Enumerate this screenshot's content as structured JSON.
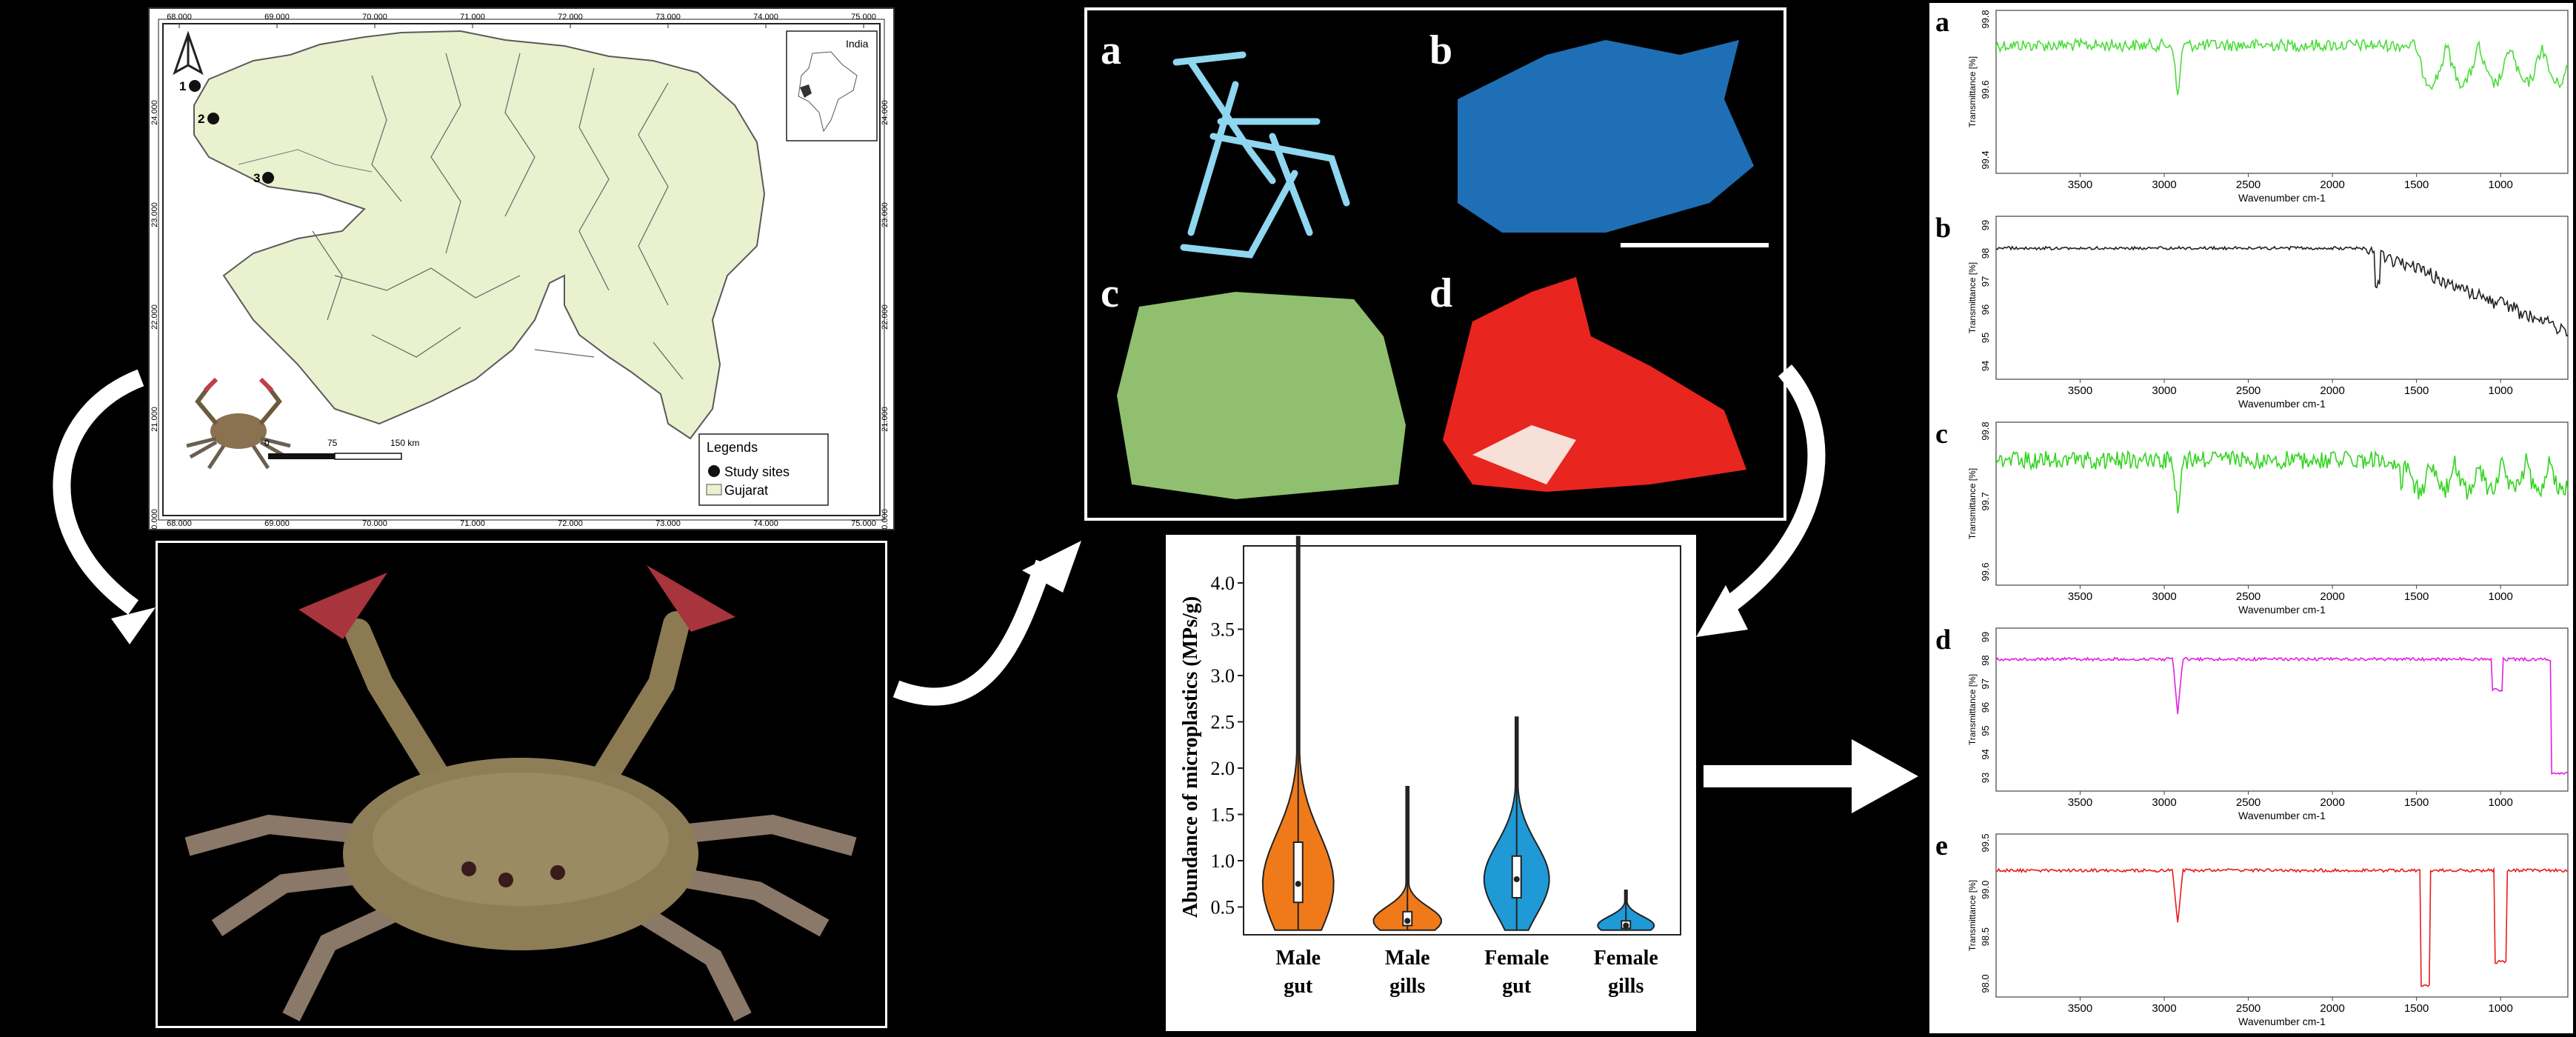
{
  "map": {
    "top_ticks": [
      "68.000",
      "69.000",
      "70.000",
      "71.000",
      "72.000",
      "73.000",
      "74.000",
      "75.000"
    ],
    "bottom_ticks": [
      "68.000",
      "69.000",
      "70.000",
      "71.000",
      "72.000",
      "73.000",
      "74.000",
      "75.000"
    ],
    "left_ticks": [
      "24.000",
      "23.000",
      "22.000",
      "21.000",
      "20.000"
    ],
    "right_ticks": [
      "24.000",
      "23.000",
      "22.000",
      "21.000",
      "20.000"
    ],
    "inset_label": "India",
    "sites": [
      "1",
      "2",
      "3"
    ],
    "scale_labels": [
      "0",
      "75",
      "150 km"
    ],
    "legend_title": "Legends",
    "legend_items": [
      "Study sites",
      "Gujarat"
    ]
  },
  "microplastics": {
    "labels": [
      "a",
      "b",
      "c",
      "d"
    ]
  },
  "violin": {
    "chart_data": {
      "type": "violin",
      "ylabel": "Abundance of microplastics (MPs/g)",
      "ylim": [
        0.2,
        4.4
      ],
      "yticks": [
        "0.5",
        "1.0",
        "1.5",
        "2.0",
        "2.5",
        "3.0",
        "3.5",
        "4.0"
      ],
      "categories": [
        {
          "line1": "Male",
          "line2": "gut",
          "color": "#f07a1a",
          "min": 0.25,
          "q1": 0.55,
          "median": 0.75,
          "q3": 1.2,
          "max": 4.5
        },
        {
          "line1": "Male",
          "line2": "gills",
          "color": "#f07a1a",
          "min": 0.25,
          "q1": 0.3,
          "median": 0.35,
          "q3": 0.45,
          "max": 1.8
        },
        {
          "line1": "Female",
          "line2": "gut",
          "color": "#1f9ad6",
          "min": 0.25,
          "q1": 0.6,
          "median": 0.8,
          "q3": 1.05,
          "max": 2.55
        },
        {
          "line1": "Female",
          "line2": "gills",
          "color": "#1f9ad6",
          "min": 0.25,
          "q1": 0.27,
          "median": 0.3,
          "q3": 0.35,
          "max": 0.68
        }
      ]
    }
  },
  "ftir": {
    "xlabel": "Wavenumber cm-1",
    "ylabel": "Transmittance [%]",
    "xticks": [
      "3500",
      "3000",
      "2500",
      "2000",
      "1500",
      "1000"
    ],
    "spectra": [
      {
        "label": "a",
        "color": "#4cdc3c",
        "yticks": [
          "99.8",
          "99.6",
          "99.4"
        ]
      },
      {
        "label": "b",
        "color": "#222222",
        "yticks": [
          "99",
          "98",
          "97",
          "96",
          "95",
          "94"
        ]
      },
      {
        "label": "c",
        "color": "#33d420",
        "yticks": [
          "99.8",
          "99.7",
          "99.6"
        ]
      },
      {
        "label": "d",
        "color": "#e020e0",
        "yticks": [
          "99",
          "98",
          "97",
          "96",
          "95",
          "94",
          "93"
        ]
      },
      {
        "label": "e",
        "color": "#e81c1c",
        "yticks": [
          "99.5",
          "99.0",
          "98.5",
          "98.0"
        ]
      }
    ]
  }
}
